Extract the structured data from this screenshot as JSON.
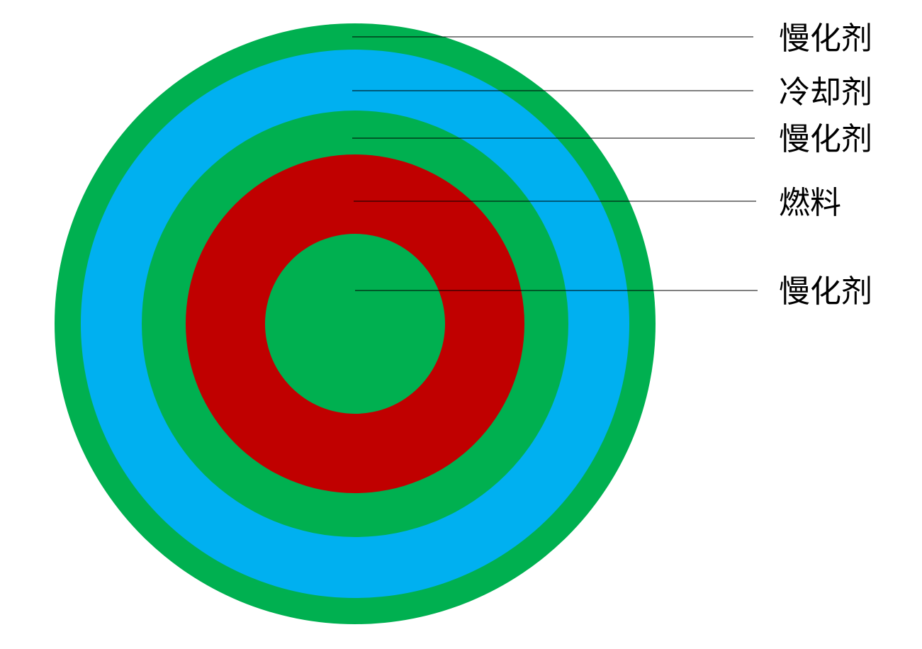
{
  "colors": {
    "moderator": "#00b050",
    "coolant": "#00b0f0",
    "fuel": "#c00000",
    "leader_line": "#000000",
    "label_text": "#000000",
    "background": "#ffffff"
  },
  "layers": [
    {
      "id": "outer-moderator",
      "label": "慢化剂",
      "color_key": "moderator"
    },
    {
      "id": "coolant",
      "label": "冷却剂",
      "color_key": "coolant"
    },
    {
      "id": "middle-moderator",
      "label": "慢化剂",
      "color_key": "moderator"
    },
    {
      "id": "fuel",
      "label": "燃料",
      "color_key": "fuel"
    },
    {
      "id": "inner-moderator",
      "label": "慢化剂",
      "color_key": "moderator"
    }
  ]
}
